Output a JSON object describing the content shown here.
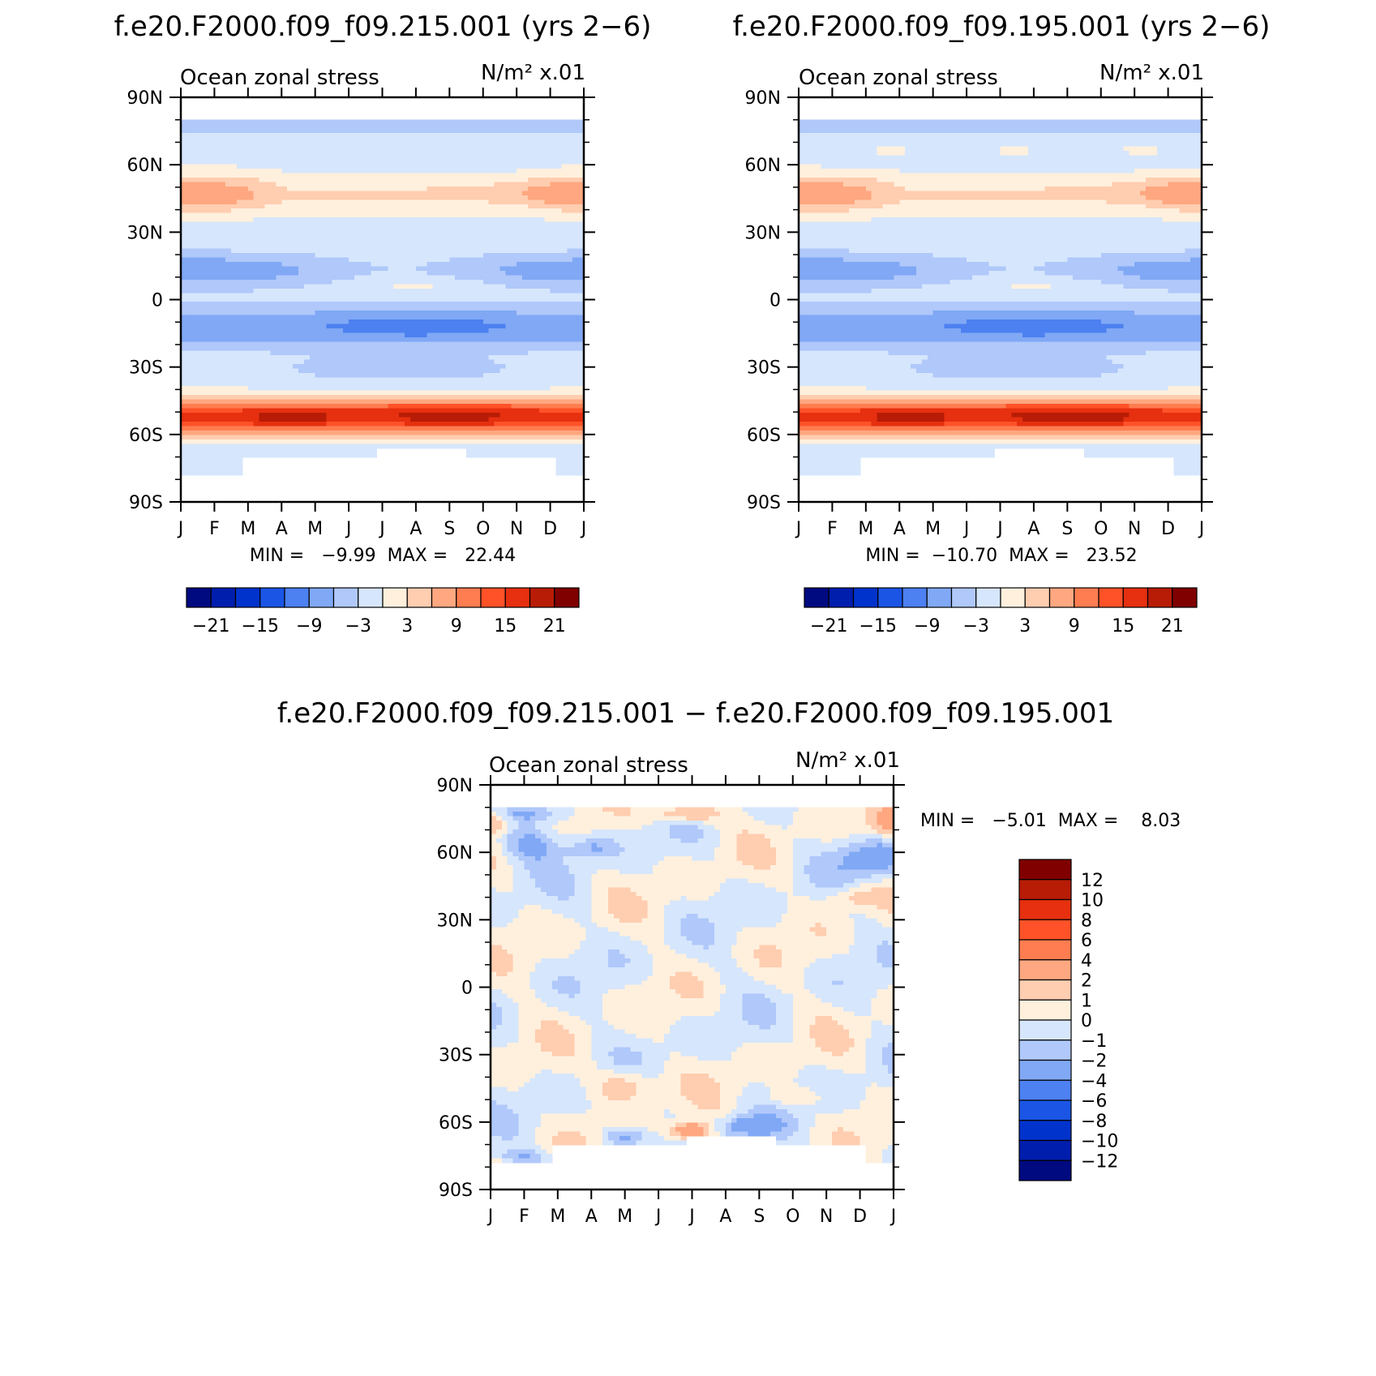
{
  "colors": {
    "blues": [
      "#000a80",
      "#001ead",
      "#0033cc",
      "#1a55e6",
      "#4d80f0",
      "#80a8f5",
      "#b0c8fa",
      "#d6e6fc"
    ],
    "reds": [
      "#fff0dd",
      "#ffcdb0",
      "#ffa780",
      "#ff7d50",
      "#ff5228",
      "#e63010",
      "#b81c06",
      "#800000"
    ],
    "missing": "#ffffff"
  },
  "chart_data": [
    {
      "id": "model_a",
      "type": "heatmap",
      "title": "f.e20.F2000.f09_f09.215.001 (yrs 2−6)",
      "left_label": "Ocean zonal stress",
      "units_label": "N/m² x.01",
      "x_tick_labels": [
        "J",
        "F",
        "M",
        "A",
        "M",
        "J",
        "J",
        "A",
        "S",
        "O",
        "N",
        "D",
        "J"
      ],
      "y_tick_labels": [
        "90N",
        "60N",
        "30N",
        "0",
        "30S",
        "60S",
        "90S"
      ],
      "ylim": [
        -90,
        90
      ],
      "stats_label": "MIN =   −9.99  MAX =   22.44",
      "min": -9.99,
      "max": 22.44,
      "levels": [
        -21,
        -18,
        -15,
        -12,
        -9,
        -6,
        -3,
        0,
        3,
        6,
        9,
        12,
        15,
        18,
        21
      ],
      "colorbar_labels": [
        "−21",
        "−15",
        "−9",
        "−3",
        "3",
        "9",
        "15",
        "21"
      ],
      "colorbar_orientation": "horizontal",
      "field": "climatology_a",
      "lat_range": [
        -78,
        80
      ]
    },
    {
      "id": "model_b",
      "type": "heatmap",
      "title": "f.e20.F2000.f09_f09.195.001 (yrs 2−6)",
      "left_label": "Ocean zonal stress",
      "units_label": "N/m² x.01",
      "x_tick_labels": [
        "J",
        "F",
        "M",
        "A",
        "M",
        "J",
        "J",
        "A",
        "S",
        "O",
        "N",
        "D",
        "J"
      ],
      "y_tick_labels": [
        "90N",
        "60N",
        "30N",
        "0",
        "30S",
        "60S",
        "90S"
      ],
      "ylim": [
        -90,
        90
      ],
      "stats_label": "MIN =  −10.70  MAX =   23.52",
      "min": -10.7,
      "max": 23.52,
      "levels": [
        -21,
        -18,
        -15,
        -12,
        -9,
        -6,
        -3,
        0,
        3,
        6,
        9,
        12,
        15,
        18,
        21
      ],
      "colorbar_labels": [
        "−21",
        "−15",
        "−9",
        "−3",
        "3",
        "9",
        "15",
        "21"
      ],
      "colorbar_orientation": "horizontal",
      "field": "climatology_b",
      "lat_range": [
        -78,
        80
      ]
    },
    {
      "id": "difference",
      "type": "heatmap",
      "title": "f.e20.F2000.f09_f09.215.001 − f.e20.F2000.f09_f09.195.001",
      "left_label": "Ocean zonal stress",
      "units_label": "N/m² x.01",
      "x_tick_labels": [
        "J",
        "F",
        "M",
        "A",
        "M",
        "J",
        "J",
        "A",
        "S",
        "O",
        "N",
        "D",
        "J"
      ],
      "y_tick_labels": [
        "90N",
        "60N",
        "30N",
        "0",
        "30S",
        "60S",
        "90S"
      ],
      "ylim": [
        -90,
        90
      ],
      "stats_label": "MIN =   −5.01  MAX =    8.03",
      "min": -5.01,
      "max": 8.03,
      "levels": [
        -12,
        -10,
        -8,
        -6,
        -4,
        -2,
        -1,
        0,
        1,
        2,
        4,
        6,
        8,
        10,
        12
      ],
      "colorbar_labels": [
        "12",
        "10",
        "8",
        "6",
        "4",
        "2",
        "1",
        "0",
        "−1",
        "−2",
        "−4",
        "−6",
        "−8",
        "−10",
        "−12"
      ],
      "colorbar_orientation": "vertical",
      "field": "difference",
      "lat_range": [
        -78,
        80
      ]
    }
  ]
}
